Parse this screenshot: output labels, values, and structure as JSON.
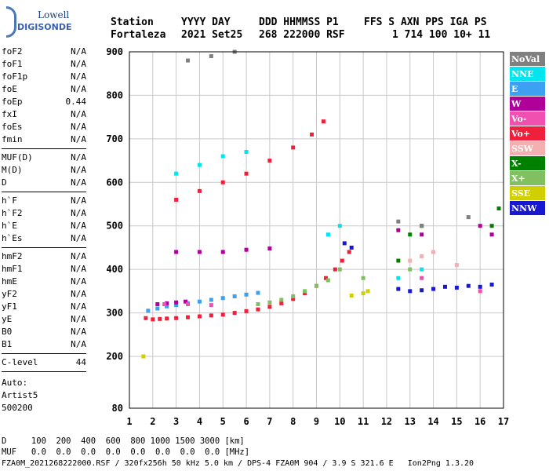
{
  "logo": {
    "top": "Lowell",
    "bottom": "DIGISONDE"
  },
  "header": {
    "labels": [
      "Station",
      "YYYY DAY",
      "DDD HHMMSS P1",
      "FFS S AXN PPS IGA PS"
    ],
    "values": [
      "Fortaleza",
      "2021 Set25",
      "268 222000 RSF",
      "1 714 100 10+ 11"
    ]
  },
  "params_group1": [
    {
      "name": "foF2",
      "value": "N/A"
    },
    {
      "name": "foF1",
      "value": "N/A"
    },
    {
      "name": "foF1p",
      "value": "N/A"
    },
    {
      "name": "foE",
      "value": "N/A"
    },
    {
      "name": "foEp",
      "value": "0.44"
    },
    {
      "name": "fxI",
      "value": "N/A"
    },
    {
      "name": "foEs",
      "value": "N/A"
    },
    {
      "name": "fmin",
      "value": "N/A"
    }
  ],
  "params_group2": [
    {
      "name": "MUF(D)",
      "value": "N/A"
    },
    {
      "name": "M(D)",
      "value": "N/A"
    },
    {
      "name": "D",
      "value": "N/A"
    }
  ],
  "params_group3": [
    {
      "name": "h`F",
      "value": "N/A"
    },
    {
      "name": "h`F2",
      "value": "N/A"
    },
    {
      "name": "h`E",
      "value": "N/A"
    },
    {
      "name": "h`Es",
      "value": "N/A"
    }
  ],
  "params_group4": [
    {
      "name": "hmF2",
      "value": "N/A"
    },
    {
      "name": "hmF1",
      "value": "N/A"
    },
    {
      "name": "hmE",
      "value": "N/A"
    },
    {
      "name": "yF2",
      "value": "N/A"
    },
    {
      "name": "yF1",
      "value": "N/A"
    },
    {
      "name": "yE",
      "value": "N/A"
    },
    {
      "name": "B0",
      "value": "N/A"
    },
    {
      "name": "B1",
      "value": "N/A"
    }
  ],
  "clevel": {
    "name": "C-level",
    "value": "44"
  },
  "auto": [
    "Auto:",
    "Artist5",
    "500200"
  ],
  "legend": [
    {
      "label": "NoVal",
      "color": "#808080"
    },
    {
      "label": "NNE",
      "color": "#00e5ee"
    },
    {
      "label": "E",
      "color": "#3ea0f0"
    },
    {
      "label": "W",
      "color": "#b0009a"
    },
    {
      "label": "Vo-",
      "color": "#f050b0"
    },
    {
      "label": "Vo+",
      "color": "#f0203c"
    },
    {
      "label": "SSW",
      "color": "#f4b0b0"
    },
    {
      "label": "X-",
      "color": "#008000"
    },
    {
      "label": "X+",
      "color": "#80c060"
    },
    {
      "label": "SSE",
      "color": "#d0d000"
    },
    {
      "label": "NNW",
      "color": "#1818d0"
    }
  ],
  "footer": {
    "line1": "D     100  200  400  600  800 1000 1500 3000 [km]",
    "line2": "MUF   0.0  0.0  0.0  0.0  0.0  0.0  0.0  0.0 [MHz]",
    "line3": "FZA0M_2021268222000.RSF / 320fx256h 50 kHz 5.0 km / DPS-4 FZA0M 904 / 3.9 S 321.6 E   Ion2Png 1.3.20"
  },
  "chart_data": {
    "type": "scatter",
    "title": "",
    "xlabel": "",
    "ylabel": "",
    "xlim": [
      1,
      17
    ],
    "ylim": [
      80,
      900
    ],
    "x_ticks": [
      1,
      2,
      3,
      4,
      5,
      6,
      7,
      8,
      9,
      10,
      11,
      12,
      13,
      14,
      15,
      16,
      17
    ],
    "y_ticks": [
      80,
      200,
      300,
      400,
      500,
      600,
      700,
      800,
      900
    ],
    "grid": true,
    "legend_position": "right",
    "series": [
      {
        "name": "Vo+",
        "color": "#f0203c",
        "points": [
          [
            1.7,
            288
          ],
          [
            2.0,
            285
          ],
          [
            2.3,
            286
          ],
          [
            2.6,
            287
          ],
          [
            3.0,
            288
          ],
          [
            3.5,
            290
          ],
          [
            4.0,
            292
          ],
          [
            4.5,
            294
          ],
          [
            5.0,
            296
          ],
          [
            5.5,
            300
          ],
          [
            6.0,
            304
          ],
          [
            6.5,
            308
          ],
          [
            7.0,
            314
          ],
          [
            7.5,
            322
          ],
          [
            8.0,
            332
          ],
          [
            8.5,
            345
          ],
          [
            9.0,
            362
          ],
          [
            9.4,
            380
          ],
          [
            9.8,
            400
          ],
          [
            10.1,
            420
          ],
          [
            10.4,
            440
          ],
          [
            3.0,
            560
          ],
          [
            4.0,
            580
          ],
          [
            5.0,
            600
          ],
          [
            6.0,
            620
          ],
          [
            7.0,
            650
          ],
          [
            8.0,
            680
          ],
          [
            8.8,
            710
          ],
          [
            9.3,
            740
          ]
        ]
      },
      {
        "name": "E",
        "color": "#3ea0f0",
        "points": [
          [
            1.8,
            305
          ],
          [
            2.2,
            310
          ],
          [
            2.6,
            315
          ],
          [
            3.0,
            318
          ],
          [
            3.5,
            322
          ],
          [
            4.0,
            326
          ],
          [
            4.5,
            330
          ],
          [
            5.0,
            334
          ],
          [
            5.5,
            338
          ],
          [
            6.0,
            342
          ],
          [
            6.5,
            346
          ]
        ]
      },
      {
        "name": "W",
        "color": "#b0009a",
        "points": [
          [
            2.2,
            320
          ],
          [
            2.6,
            322
          ],
          [
            3.0,
            324
          ],
          [
            3.4,
            326
          ],
          [
            3.0,
            440
          ],
          [
            4.0,
            440
          ],
          [
            5.0,
            440
          ],
          [
            6.0,
            445
          ],
          [
            7.0,
            448
          ],
          [
            12.5,
            490
          ],
          [
            13.5,
            480
          ],
          [
            16.0,
            500
          ],
          [
            16.5,
            480
          ]
        ]
      },
      {
        "name": "X+",
        "color": "#80c060",
        "points": [
          [
            6.5,
            320
          ],
          [
            7.0,
            324
          ],
          [
            7.5,
            330
          ],
          [
            8.0,
            338
          ],
          [
            8.5,
            350
          ],
          [
            9.0,
            362
          ],
          [
            9.5,
            375
          ],
          [
            10.0,
            400
          ],
          [
            11.0,
            380
          ],
          [
            13.0,
            400
          ]
        ]
      },
      {
        "name": "NNE",
        "color": "#00e5ee",
        "points": [
          [
            3.0,
            620
          ],
          [
            4.0,
            640
          ],
          [
            5.0,
            660
          ],
          [
            6.0,
            670
          ],
          [
            9.5,
            480
          ],
          [
            10.0,
            500
          ],
          [
            12.5,
            380
          ],
          [
            13.5,
            400
          ]
        ]
      },
      {
        "name": "NNW",
        "color": "#1818d0",
        "points": [
          [
            10.2,
            460
          ],
          [
            10.5,
            450
          ],
          [
            12.5,
            355
          ],
          [
            13.0,
            350
          ],
          [
            13.5,
            352
          ],
          [
            14.0,
            355
          ],
          [
            14.5,
            360
          ],
          [
            15.0,
            358
          ],
          [
            15.5,
            362
          ],
          [
            16.0,
            360
          ],
          [
            16.5,
            365
          ]
        ]
      },
      {
        "name": "SSE",
        "color": "#d0d000",
        "points": [
          [
            10.5,
            340
          ],
          [
            11.0,
            345
          ],
          [
            11.2,
            350
          ],
          [
            1.6,
            200
          ]
        ]
      },
      {
        "name": "X-",
        "color": "#008000",
        "points": [
          [
            12.5,
            420
          ],
          [
            13.0,
            480
          ],
          [
            13.5,
            500
          ],
          [
            16.5,
            500
          ],
          [
            16.8,
            540
          ]
        ]
      },
      {
        "name": "SSW",
        "color": "#f4b0b0",
        "points": [
          [
            13.0,
            420
          ],
          [
            13.5,
            430
          ],
          [
            14.0,
            440
          ],
          [
            15.0,
            410
          ]
        ]
      },
      {
        "name": "Vo-",
        "color": "#f050b0",
        "points": [
          [
            2.5,
            320
          ],
          [
            3.5,
            320
          ],
          [
            4.5,
            318
          ],
          [
            13.5,
            380
          ],
          [
            16.0,
            350
          ]
        ]
      },
      {
        "name": "NoVal",
        "color": "#808080",
        "points": [
          [
            3.5,
            880
          ],
          [
            4.5,
            890
          ],
          [
            5.5,
            900
          ],
          [
            12.5,
            510
          ],
          [
            13.5,
            500
          ],
          [
            15.5,
            520
          ]
        ]
      }
    ]
  }
}
